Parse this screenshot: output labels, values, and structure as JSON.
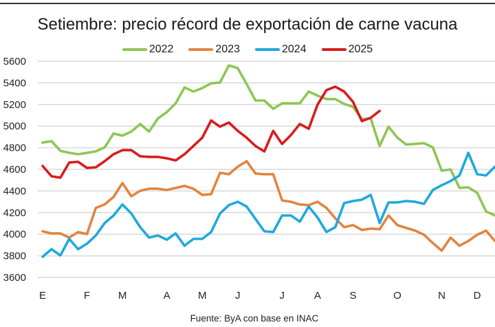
{
  "chart_data": {
    "type": "line",
    "title": "Setiembre: precio récord de exportación de carne vacuna",
    "xlabel": "",
    "ylabel": "",
    "ylim": [
      3600,
      5600
    ],
    "yticks": [
      3600,
      3800,
      4000,
      4200,
      4400,
      4600,
      4800,
      5000,
      5200,
      5400,
      5600
    ],
    "xtick_labels": [
      "E",
      "F",
      "M",
      "A",
      "M",
      "J",
      "J",
      "A",
      "S",
      "O",
      "N",
      "D"
    ],
    "xtick_weeks": [
      0,
      5,
      9,
      14,
      18,
      22,
      27,
      31,
      35,
      40,
      45,
      49
    ],
    "x_unit": "week",
    "grid": true,
    "legend_position": "top",
    "source": "Fuente: ByA con base en INAC",
    "series": [
      {
        "name": "2022",
        "color": "#8dc655",
        "values": [
          4848,
          4861,
          4772,
          4753,
          4740,
          4753,
          4766,
          4804,
          4931,
          4912,
          4950,
          5020,
          4950,
          5071,
          5129,
          5211,
          5358,
          5320,
          5352,
          5396,
          5403,
          5562,
          5536,
          5390,
          5237,
          5237,
          5160,
          5211,
          5211,
          5211,
          5320,
          5282,
          5250,
          5250,
          5205,
          5179,
          5065,
          5071,
          4816,
          4995,
          4893,
          4829,
          4835,
          4842,
          4804,
          4587,
          4600,
          4428,
          4434,
          4383,
          4211,
          4173
        ]
      },
      {
        "name": "2023",
        "color": "#e2843f",
        "values": [
          4027,
          4007,
          4007,
          3969,
          4020,
          4001,
          4243,
          4275,
          4345,
          4473,
          4351,
          4402,
          4421,
          4421,
          4409,
          4428,
          4447,
          4421,
          4364,
          4370,
          4568,
          4555,
          4625,
          4676,
          4561,
          4555,
          4555,
          4313,
          4300,
          4275,
          4269,
          4300,
          4243,
          4147,
          4065,
          4084,
          4039,
          4052,
          4046,
          4173,
          4084,
          4058,
          4033,
          3995,
          3918,
          3848,
          3969,
          3893,
          3937,
          3995,
          4033,
          3937
        ]
      },
      {
        "name": "2024",
        "color": "#1ea9dd",
        "values": [
          3791,
          3861,
          3804,
          3957,
          3861,
          3912,
          3988,
          4103,
          4173,
          4275,
          4192,
          4065,
          3969,
          3988,
          3950,
          4007,
          3893,
          3957,
          3957,
          4020,
          4192,
          4269,
          4300,
          4256,
          4141,
          4027,
          4020,
          4173,
          4173,
          4116,
          4256,
          4154,
          4020,
          4065,
          4288,
          4307,
          4320,
          4364,
          4103,
          4294,
          4294,
          4307,
          4300,
          4281,
          4409,
          4453,
          4492,
          4543,
          4753,
          4555,
          4543,
          4625
        ]
      },
      {
        "name": "2025",
        "color": "#d81c1c",
        "values": [
          4632,
          4536,
          4523,
          4663,
          4670,
          4613,
          4619,
          4676,
          4740,
          4778,
          4778,
          4721,
          4715,
          4715,
          4702,
          4683,
          4740,
          4816,
          4893,
          5052,
          4995,
          5033,
          4956,
          4893,
          4816,
          4766,
          4956,
          4835,
          4918,
          5020,
          4975,
          5199,
          5333,
          5365,
          5320,
          5224,
          5046,
          5078,
          5141
        ]
      }
    ]
  }
}
